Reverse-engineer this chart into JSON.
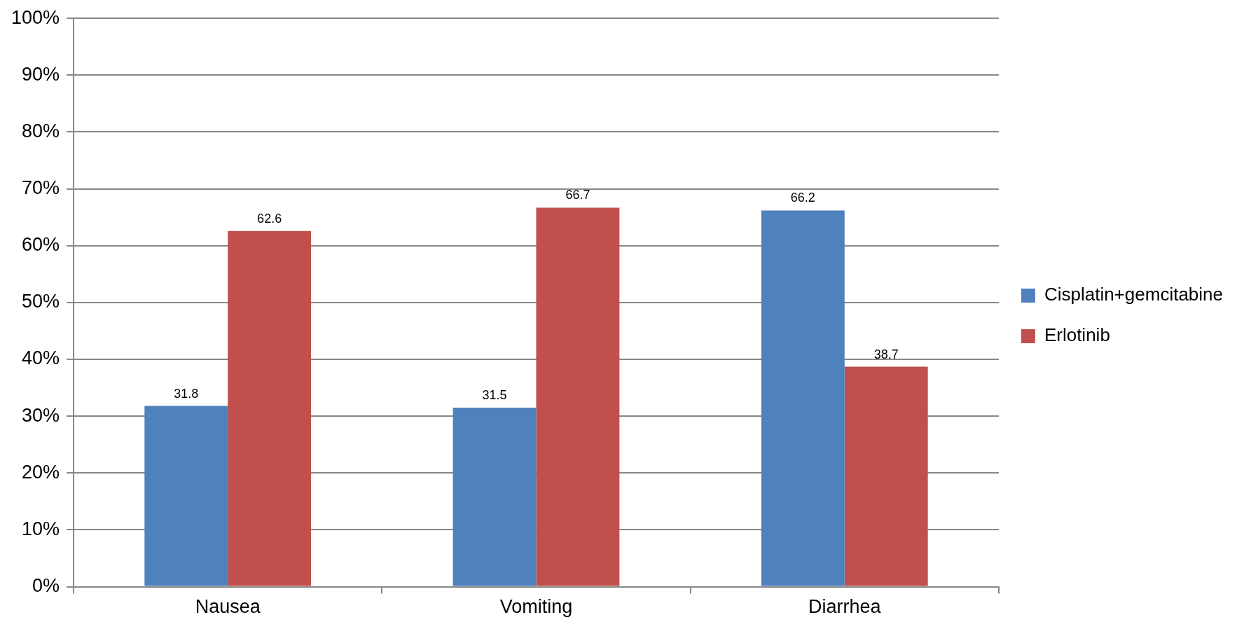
{
  "chart_data": {
    "type": "bar",
    "categories": [
      "Nausea",
      "Vomiting",
      "Diarrhea"
    ],
    "series": [
      {
        "name": "Cisplatin+gemcitabine",
        "color": "#4f81bd",
        "values": [
          31.8,
          31.5,
          66.2
        ]
      },
      {
        "name": "Erlotinib",
        "color": "#c0504d",
        "values": [
          62.6,
          66.7,
          38.7
        ]
      }
    ],
    "ylim": [
      0,
      100
    ],
    "yticks": [
      {
        "value": 0,
        "label": "0%"
      },
      {
        "value": 10,
        "label": "10%"
      },
      {
        "value": 20,
        "label": "20%"
      },
      {
        "value": 30,
        "label": "30%"
      },
      {
        "value": 40,
        "label": "40%"
      },
      {
        "value": 50,
        "label": "50%"
      },
      {
        "value": 60,
        "label": "60%"
      },
      {
        "value": 70,
        "label": "70%"
      },
      {
        "value": 80,
        "label": "80%"
      },
      {
        "value": 90,
        "label": "90%"
      },
      {
        "value": 100,
        "label": "100%"
      }
    ],
    "grid": "y",
    "legend": "right",
    "data_labels": true
  }
}
